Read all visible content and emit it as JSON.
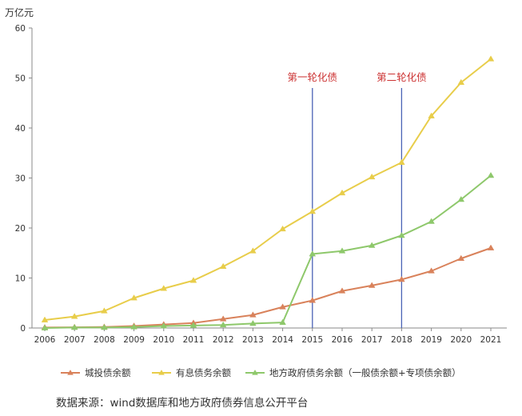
{
  "chart_data": {
    "type": "line",
    "title": "",
    "ylabel": "万亿元",
    "xlabel": "",
    "ylim": [
      0,
      60
    ],
    "yticks": [
      0,
      10,
      20,
      30,
      40,
      50,
      60
    ],
    "categories": [
      "2006",
      "2007",
      "2008",
      "2009",
      "2010",
      "2011",
      "2012",
      "2013",
      "2014",
      "2015",
      "2016",
      "2017",
      "2018",
      "2019",
      "2020",
      "2021"
    ],
    "grid": false,
    "legend_position": "bottom",
    "series": [
      {
        "name": "城投债余额",
        "color": "#d9825b",
        "marker": "triangle",
        "values": [
          0.1,
          0.15,
          0.2,
          0.4,
          0.7,
          1.0,
          1.8,
          2.6,
          4.2,
          5.5,
          7.4,
          8.5,
          9.7,
          11.4,
          13.9,
          16.0
        ]
      },
      {
        "name": "有息债务余额",
        "color": "#e8cd4a",
        "marker": "triangle",
        "values": [
          1.6,
          2.3,
          3.4,
          6.0,
          7.9,
          9.5,
          12.3,
          15.4,
          19.8,
          23.3,
          27.0,
          30.2,
          33.1,
          42.4,
          49.1,
          53.8
        ]
      },
      {
        "name": "地方政府债务余额（一般债余额+专项债余额）",
        "color": "#8ec86b",
        "marker": "triangle",
        "values": [
          0.0,
          0.1,
          0.1,
          0.2,
          0.4,
          0.5,
          0.6,
          0.9,
          1.1,
          14.8,
          15.4,
          16.5,
          18.5,
          21.3,
          25.7,
          30.5
        ]
      }
    ],
    "annotations": [
      {
        "x": "2015",
        "label": "第一轮化债",
        "color": "#4a63b5",
        "text_color": "#cc3333"
      },
      {
        "x": "2018",
        "label": "第二轮化债",
        "color": "#4a63b5",
        "text_color": "#cc3333"
      }
    ]
  },
  "source_note": "数据来源：wind数据库和地方政府债券信息公开平台"
}
